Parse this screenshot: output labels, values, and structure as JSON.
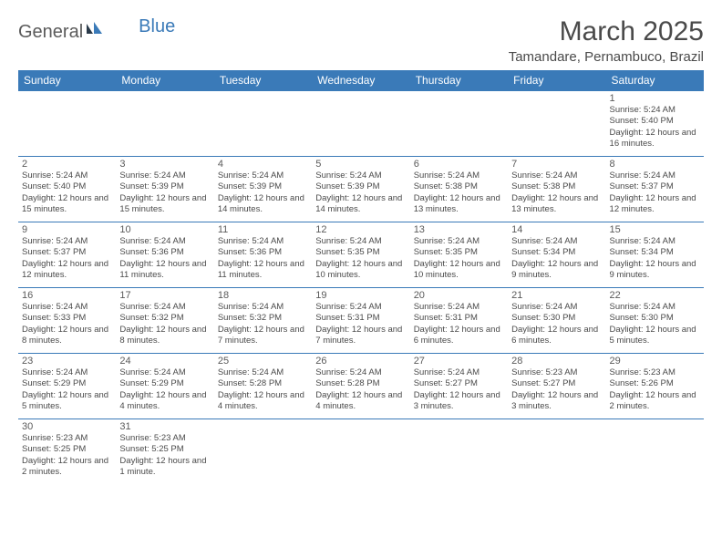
{
  "logo": {
    "text1": "General",
    "text2": "Blue"
  },
  "title": "March 2025",
  "location": "Tamandare, Pernambuco, Brazil",
  "colors": {
    "header_bg": "#3a7ab8",
    "header_text": "#ffffff",
    "border": "#3a7ab8",
    "text": "#4a4a4a",
    "logo_gray": "#5a5a5a",
    "logo_blue": "#3a7ab8",
    "background": "#ffffff"
  },
  "fonts": {
    "title_size": 30,
    "location_size": 15,
    "dayheader_size": 12,
    "daynum_size": 11,
    "dayinfo_size": 9.5
  },
  "day_headers": [
    "Sunday",
    "Monday",
    "Tuesday",
    "Wednesday",
    "Thursday",
    "Friday",
    "Saturday"
  ],
  "weeks": [
    [
      null,
      null,
      null,
      null,
      null,
      null,
      {
        "n": "1",
        "sunrise": "5:24 AM",
        "sunset": "5:40 PM",
        "daylight": "12 hours and 16 minutes."
      }
    ],
    [
      {
        "n": "2",
        "sunrise": "5:24 AM",
        "sunset": "5:40 PM",
        "daylight": "12 hours and 15 minutes."
      },
      {
        "n": "3",
        "sunrise": "5:24 AM",
        "sunset": "5:39 PM",
        "daylight": "12 hours and 15 minutes."
      },
      {
        "n": "4",
        "sunrise": "5:24 AM",
        "sunset": "5:39 PM",
        "daylight": "12 hours and 14 minutes."
      },
      {
        "n": "5",
        "sunrise": "5:24 AM",
        "sunset": "5:39 PM",
        "daylight": "12 hours and 14 minutes."
      },
      {
        "n": "6",
        "sunrise": "5:24 AM",
        "sunset": "5:38 PM",
        "daylight": "12 hours and 13 minutes."
      },
      {
        "n": "7",
        "sunrise": "5:24 AM",
        "sunset": "5:38 PM",
        "daylight": "12 hours and 13 minutes."
      },
      {
        "n": "8",
        "sunrise": "5:24 AM",
        "sunset": "5:37 PM",
        "daylight": "12 hours and 12 minutes."
      }
    ],
    [
      {
        "n": "9",
        "sunrise": "5:24 AM",
        "sunset": "5:37 PM",
        "daylight": "12 hours and 12 minutes."
      },
      {
        "n": "10",
        "sunrise": "5:24 AM",
        "sunset": "5:36 PM",
        "daylight": "12 hours and 11 minutes."
      },
      {
        "n": "11",
        "sunrise": "5:24 AM",
        "sunset": "5:36 PM",
        "daylight": "12 hours and 11 minutes."
      },
      {
        "n": "12",
        "sunrise": "5:24 AM",
        "sunset": "5:35 PM",
        "daylight": "12 hours and 10 minutes."
      },
      {
        "n": "13",
        "sunrise": "5:24 AM",
        "sunset": "5:35 PM",
        "daylight": "12 hours and 10 minutes."
      },
      {
        "n": "14",
        "sunrise": "5:24 AM",
        "sunset": "5:34 PM",
        "daylight": "12 hours and 9 minutes."
      },
      {
        "n": "15",
        "sunrise": "5:24 AM",
        "sunset": "5:34 PM",
        "daylight": "12 hours and 9 minutes."
      }
    ],
    [
      {
        "n": "16",
        "sunrise": "5:24 AM",
        "sunset": "5:33 PM",
        "daylight": "12 hours and 8 minutes."
      },
      {
        "n": "17",
        "sunrise": "5:24 AM",
        "sunset": "5:32 PM",
        "daylight": "12 hours and 8 minutes."
      },
      {
        "n": "18",
        "sunrise": "5:24 AM",
        "sunset": "5:32 PM",
        "daylight": "12 hours and 7 minutes."
      },
      {
        "n": "19",
        "sunrise": "5:24 AM",
        "sunset": "5:31 PM",
        "daylight": "12 hours and 7 minutes."
      },
      {
        "n": "20",
        "sunrise": "5:24 AM",
        "sunset": "5:31 PM",
        "daylight": "12 hours and 6 minutes."
      },
      {
        "n": "21",
        "sunrise": "5:24 AM",
        "sunset": "5:30 PM",
        "daylight": "12 hours and 6 minutes."
      },
      {
        "n": "22",
        "sunrise": "5:24 AM",
        "sunset": "5:30 PM",
        "daylight": "12 hours and 5 minutes."
      }
    ],
    [
      {
        "n": "23",
        "sunrise": "5:24 AM",
        "sunset": "5:29 PM",
        "daylight": "12 hours and 5 minutes."
      },
      {
        "n": "24",
        "sunrise": "5:24 AM",
        "sunset": "5:29 PM",
        "daylight": "12 hours and 4 minutes."
      },
      {
        "n": "25",
        "sunrise": "5:24 AM",
        "sunset": "5:28 PM",
        "daylight": "12 hours and 4 minutes."
      },
      {
        "n": "26",
        "sunrise": "5:24 AM",
        "sunset": "5:28 PM",
        "daylight": "12 hours and 4 minutes."
      },
      {
        "n": "27",
        "sunrise": "5:24 AM",
        "sunset": "5:27 PM",
        "daylight": "12 hours and 3 minutes."
      },
      {
        "n": "28",
        "sunrise": "5:23 AM",
        "sunset": "5:27 PM",
        "daylight": "12 hours and 3 minutes."
      },
      {
        "n": "29",
        "sunrise": "5:23 AM",
        "sunset": "5:26 PM",
        "daylight": "12 hours and 2 minutes."
      }
    ],
    [
      {
        "n": "30",
        "sunrise": "5:23 AM",
        "sunset": "5:25 PM",
        "daylight": "12 hours and 2 minutes."
      },
      {
        "n": "31",
        "sunrise": "5:23 AM",
        "sunset": "5:25 PM",
        "daylight": "12 hours and 1 minute."
      },
      null,
      null,
      null,
      null,
      null
    ]
  ],
  "labels": {
    "sunrise": "Sunrise:",
    "sunset": "Sunset:",
    "daylight": "Daylight:"
  }
}
